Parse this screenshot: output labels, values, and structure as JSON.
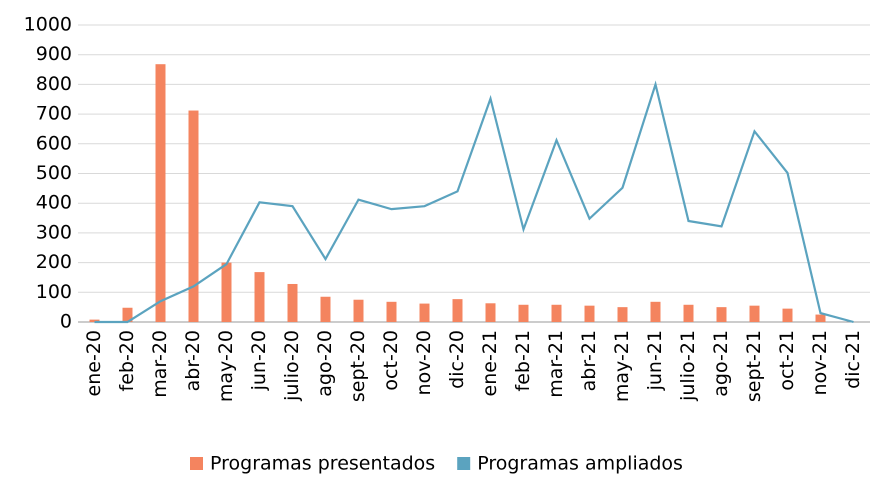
{
  "chart_data": {
    "type": "combo",
    "categories": [
      "ene-20",
      "feb-20",
      "mar-20",
      "abr-20",
      "may-20",
      "jun-20",
      "julio-20",
      "ago-20",
      "sept-20",
      "oct-20",
      "nov-20",
      "dic-20",
      "ene-21",
      "feb-21",
      "mar-21",
      "abr-21",
      "may-21",
      "jun-21",
      "julio-21",
      "ago-21",
      "sept-21",
      "oct-21",
      "nov-21",
      "dic-21"
    ],
    "series": [
      {
        "name": "Programas presentados",
        "type": "bar",
        "color": "#f4845f",
        "values": [
          8,
          48,
          868,
          712,
          200,
          168,
          128,
          85,
          75,
          68,
          62,
          77,
          63,
          58,
          58,
          55,
          50,
          68,
          58,
          50,
          55,
          45,
          25,
          0
        ]
      },
      {
        "name": "Programas ampliados",
        "type": "line",
        "color": "#5ba3bf",
        "values": [
          0,
          0,
          70,
          120,
          195,
          403,
          390,
          212,
          412,
          380,
          390,
          440,
          752,
          312,
          612,
          348,
          452,
          800,
          340,
          322,
          642,
          502,
          30,
          0
        ]
      }
    ],
    "ylim": [
      0,
      1000
    ],
    "yticks": [
      0,
      100,
      200,
      300,
      400,
      500,
      600,
      700,
      800,
      900,
      1000
    ],
    "grid": true,
    "legend": "bottom"
  }
}
